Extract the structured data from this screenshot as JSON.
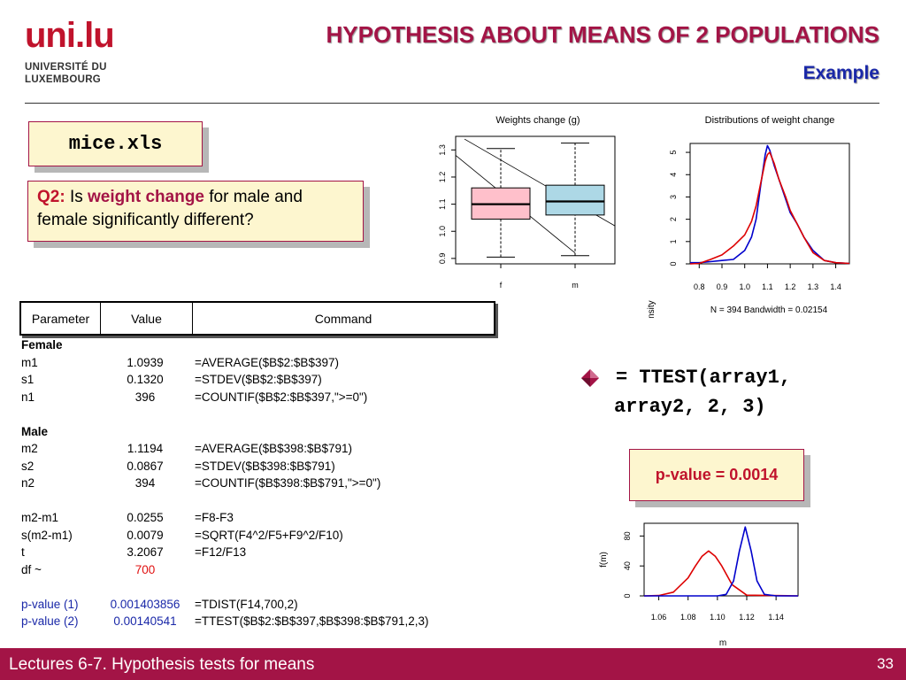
{
  "logo": {
    "main": "uni.lu",
    "line1": "UNIVERSITÉ DU",
    "line2": "LUXEMBOURG"
  },
  "header": {
    "title": "HYPOTHESIS ABOUT MEANS OF 2 POPULATIONS",
    "subtitle": "Example"
  },
  "file_box": {
    "label": "mice.xls"
  },
  "question": {
    "label": "Q2:",
    "text_pre": "Is",
    "highlight": "weight change",
    "text_post": "for male and female significantly different?"
  },
  "table": {
    "headers": [
      "Parameter",
      "Value",
      "Command"
    ],
    "rows": [
      {
        "param": "Female",
        "value": "",
        "command": "",
        "style": "bold"
      },
      {
        "param": "m1",
        "value": "1.0939",
        "command": "=AVERAGE($B$2:$B$397)",
        "style": ""
      },
      {
        "param": "s1",
        "value": "0.1320",
        "command": "=STDEV($B$2:$B$397)",
        "style": ""
      },
      {
        "param": "n1",
        "value": "396",
        "command": "=COUNTIF($B$2:$B$397,\">=0\")",
        "style": ""
      },
      {
        "param": "",
        "value": "",
        "command": "",
        "style": ""
      },
      {
        "param": "Male",
        "value": "",
        "command": "",
        "style": "bold"
      },
      {
        "param": "m2",
        "value": "1.1194",
        "command": "=AVERAGE($B$398:$B$791)",
        "style": ""
      },
      {
        "param": "s2",
        "value": "0.0867",
        "command": "=STDEV($B$398:$B$791)",
        "style": ""
      },
      {
        "param": "n2",
        "value": "394",
        "command": "=COUNTIF($B$398:$B$791,\">=0\")",
        "style": ""
      },
      {
        "param": "",
        "value": "",
        "command": "",
        "style": ""
      },
      {
        "param": "m2-m1",
        "value": "0.0255",
        "command": "=F8-F3",
        "style": ""
      },
      {
        "param": "s(m2-m1)",
        "value": "0.0079",
        "command": "=SQRT(F4^2/F5+F9^2/F10)",
        "style": ""
      },
      {
        "param": "t",
        "value": "3.2067",
        "command": "=F12/F13",
        "style": ""
      },
      {
        "param": "df ~",
        "value": "700",
        "command": "",
        "style": "value-red"
      },
      {
        "param": "",
        "value": "",
        "command": "",
        "style": ""
      },
      {
        "param": "p-value (1)",
        "value": "0.001403856",
        "command": "=TDIST(F14,700,2)",
        "style": "blue"
      },
      {
        "param": "p-value (2)",
        "value": "0.00140541",
        "command": "=TTEST($B$2:$B$397,$B$398:$B$791,2,3)",
        "style": "blue"
      }
    ]
  },
  "ttest_formula": {
    "line1": "= TTEST(array1,",
    "line2": "array2, 2, 3)"
  },
  "pvalue_box": {
    "label": "p-value = 0.0014"
  },
  "chart_data": [
    {
      "type": "boxplot",
      "title": "Weights change (g)",
      "categories": [
        "f",
        "m"
      ],
      "boxes": [
        {
          "name": "f",
          "whisker_low": 0.905,
          "q1": 1.045,
          "median": 1.1,
          "q3": 1.16,
          "whisker_high": 1.305,
          "color": "#ffc0cb"
        },
        {
          "name": "m",
          "whisker_low": 0.91,
          "q1": 1.06,
          "median": 1.11,
          "q3": 1.17,
          "whisker_high": 1.325,
          "color": "#add8e6"
        }
      ],
      "y_ticks": [
        "0.9",
        "1.0",
        "1.1",
        "1.2",
        "1.3"
      ],
      "ylim": [
        0.88,
        1.35
      ]
    },
    {
      "type": "line",
      "title": "Distributions of weight change",
      "ylabel": "Density",
      "x_ticks": [
        "0.8",
        "0.9",
        "1.0",
        "1.1",
        "1.2",
        "1.3",
        "1.4"
      ],
      "y_ticks": [
        "0",
        "1",
        "2",
        "3",
        "4",
        "5"
      ],
      "xlim": [
        0.76,
        1.46
      ],
      "ylim": [
        0,
        5.4
      ],
      "note": "N = 394   Bandwidth = 0.02154",
      "series": [
        {
          "color": "#0000cc",
          "x": [
            0.76,
            0.8,
            0.85,
            0.9,
            0.95,
            1.0,
            1.03,
            1.05,
            1.07,
            1.09,
            1.1,
            1.11,
            1.13,
            1.15,
            1.18,
            1.2,
            1.23,
            1.26,
            1.3,
            1.35,
            1.4,
            1.46
          ],
          "y": [
            0.05,
            0.05,
            0.1,
            0.15,
            0.2,
            0.6,
            1.2,
            2.0,
            3.5,
            4.9,
            5.3,
            5.1,
            4.4,
            3.8,
            2.9,
            2.3,
            1.8,
            1.2,
            0.6,
            0.15,
            0.05,
            0.02
          ]
        },
        {
          "color": "#dd0000",
          "x": [
            0.76,
            0.8,
            0.85,
            0.9,
            0.95,
            1.0,
            1.03,
            1.05,
            1.07,
            1.09,
            1.1,
            1.11,
            1.13,
            1.15,
            1.18,
            1.2,
            1.23,
            1.26,
            1.3,
            1.35,
            1.4,
            1.46
          ],
          "y": [
            0.0,
            0.02,
            0.2,
            0.4,
            0.8,
            1.3,
            1.9,
            2.6,
            3.6,
            4.6,
            4.9,
            5.0,
            4.5,
            3.8,
            3.0,
            2.4,
            1.8,
            1.2,
            0.5,
            0.15,
            0.05,
            0.02
          ]
        }
      ]
    },
    {
      "type": "line",
      "xlabel": "m",
      "ylabel": "f(m)",
      "x_ticks": [
        "1.06",
        "1.08",
        "1.10",
        "1.12",
        "1.14"
      ],
      "y_ticks": [
        "0",
        "40",
        "80"
      ],
      "xlim": [
        1.05,
        1.155
      ],
      "ylim": [
        0,
        97
      ],
      "series": [
        {
          "color": "#dd0000",
          "x": [
            1.05,
            1.06,
            1.07,
            1.08,
            1.085,
            1.0895,
            1.094,
            1.0985,
            1.103,
            1.11,
            1.12,
            1.155
          ],
          "y": [
            0,
            0.5,
            5,
            24,
            40,
            53,
            60,
            53,
            40,
            15,
            1,
            0
          ]
        },
        {
          "color": "#0000cc",
          "x": [
            1.05,
            1.1,
            1.106,
            1.111,
            1.115,
            1.119,
            1.123,
            1.127,
            1.132,
            1.14,
            1.155
          ],
          "y": [
            0,
            0,
            2,
            20,
            60,
            92,
            60,
            20,
            2,
            0,
            0
          ]
        }
      ]
    }
  ],
  "footer": {
    "text": "Lectures 6-7. Hypothesis tests for means",
    "page": "33"
  }
}
